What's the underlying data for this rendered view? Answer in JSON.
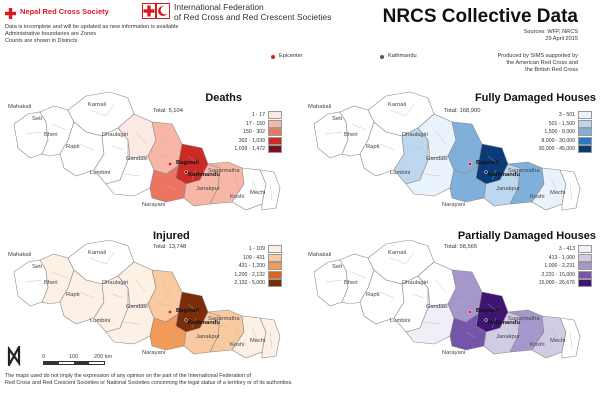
{
  "header": {
    "nrcs_name": "Nepal Red Cross Society",
    "ifrc_line1": "International Federation",
    "ifrc_line2": "of Red Cross and Red Crescent Societies",
    "title": "NRCS Collective Data"
  },
  "notes": {
    "line1": "Data is incomplete and will be updated as new information is available",
    "line2": "Administrative boundaries are Zones",
    "line3": "Counts are shown in Districts"
  },
  "source": {
    "line1": "Sources: WFP, NRCS",
    "line2": "29 April 2015",
    "produced1": "Produced by SIMS supported by",
    "produced2": "the American Red Cross and",
    "produced3": "the British Red Cross"
  },
  "legend_points": {
    "epicenter": "Epicenter",
    "kathmandu": "Kathmandu"
  },
  "zones": {
    "mahakali": "Mahakali",
    "seti": "Seti",
    "karnali": "Karnali",
    "bheri": "Bheri",
    "rapti": "Rapti",
    "dhaulagiri": "Dhaulagiri",
    "gandaki": "Gandaki",
    "lumbini": "Lumbini",
    "narayani": "Narayani",
    "bagmati": "Bagmati",
    "janakpur": "Janakpur",
    "sagarmatha": "Sagarmatha",
    "koshi": "Koshi",
    "mechi": "Mechi",
    "kathmandu": "Kathmandu"
  },
  "maps": [
    {
      "title": "Deaths",
      "total": "Total: 5,104",
      "legend": [
        {
          "label": "1 - 17",
          "color": "#fde9e4"
        },
        {
          "label": "17 - 150",
          "color": "#f8b6a6"
        },
        {
          "label": "150 - 302",
          "color": "#ee7462"
        },
        {
          "label": "302 - 1,039",
          "color": "#cc2a24"
        },
        {
          "label": "1,039 - 1,472",
          "color": "#7d1117"
        }
      ],
      "colors": {
        "mahakali": "#ffffff",
        "seti": "#ffffff",
        "karnali": "#ffffff",
        "bheri": "#ffffff",
        "rapti": "#ffffff",
        "dhaulagiri": "#fde9e4",
        "lumbini": "#ffffff",
        "gandaki": "#f8b6a6",
        "narayani": "#ee7462",
        "bagmati": "#cc2a24",
        "janakpur": "#f8b6a6",
        "sagarmatha": "#f8b6a6",
        "koshi": "#ffffff",
        "mechi": "#ffffff"
      }
    },
    {
      "title": "Fully Damaged Houses",
      "total": "Total: 168,900",
      "legend": [
        {
          "label": "3 - 501",
          "color": "#eaf2fb"
        },
        {
          "label": "501 - 1,500",
          "color": "#bdd7ee"
        },
        {
          "label": "1,500 - 8,000",
          "color": "#7fb0dc"
        },
        {
          "label": "8,000 - 30,000",
          "color": "#2d78bd"
        },
        {
          "label": "30,000 - 45,000",
          "color": "#0b3a78"
        }
      ],
      "colors": {
        "mahakali": "#ffffff",
        "seti": "#ffffff",
        "karnali": "#ffffff",
        "bheri": "#ffffff",
        "rapti": "#bdd7ee",
        "dhaulagiri": "#eaf2fb",
        "lumbini": "#eaf2fb",
        "gandaki": "#7fb0dc",
        "narayani": "#7fb0dc",
        "bagmati": "#0b3a78",
        "janakpur": "#bdd7ee",
        "sagarmatha": "#7fb0dc",
        "koshi": "#eaf2fb",
        "mechi": "#ffffff"
      }
    },
    {
      "title": "Injured",
      "total": "Total: 13,748",
      "legend": [
        {
          "label": "1 - 109",
          "color": "#fdf1e6"
        },
        {
          "label": "109 - 431",
          "color": "#f9c9a0"
        },
        {
          "label": "431 - 1,200",
          "color": "#f29a58"
        },
        {
          "label": "1,200 - 2,132",
          "color": "#d9641f"
        },
        {
          "label": "2,132 - 5,000",
          "color": "#7a2d08"
        }
      ],
      "colors": {
        "mahakali": "#ffffff",
        "seti": "#fdf1e6",
        "karnali": "#ffffff",
        "bheri": "#fdf1e6",
        "rapti": "#fdf1e6",
        "dhaulagiri": "#fdf1e6",
        "lumbini": "#fdf1e6",
        "gandaki": "#f9c9a0",
        "narayani": "#f29a58",
        "bagmati": "#7a2d08",
        "janakpur": "#f9c9a0",
        "sagarmatha": "#f9c9a0",
        "koshi": "#fdf1e6",
        "mechi": "#fdf1e6"
      }
    },
    {
      "title": "Partially Damaged Houses",
      "total": "Total: 58,565",
      "legend": [
        {
          "label": "3 - 413",
          "color": "#f1eef8"
        },
        {
          "label": "413 - 1,000",
          "color": "#d2cbe6"
        },
        {
          "label": "1,000 - 2,231",
          "color": "#a597cc"
        },
        {
          "label": "2,231 - 15,000",
          "color": "#7355aa"
        },
        {
          "label": "15,000 - 26,676",
          "color": "#3f1574"
        }
      ],
      "colors": {
        "mahakali": "#ffffff",
        "seti": "#ffffff",
        "karnali": "#ffffff",
        "bheri": "#ffffff",
        "rapti": "#ffffff",
        "dhaulagiri": "#ffffff",
        "lumbini": "#f1eef8",
        "gandaki": "#a597cc",
        "narayani": "#7355aa",
        "bagmati": "#3f1574",
        "janakpur": "#d2cbe6",
        "sagarmatha": "#a597cc",
        "koshi": "#d2cbe6",
        "mechi": "#ffffff"
      }
    }
  ],
  "scale": {
    "north": "N",
    "t0": "0",
    "t1": "100",
    "t2": "200 km"
  },
  "disclaimer": {
    "line1": "The maps used do not imply the expression of any opinion on the part of the International Federation of",
    "line2": "Red Cross and Red Crescent Societies or National Societies concerning the legal status of a territory or of its authorities."
  }
}
